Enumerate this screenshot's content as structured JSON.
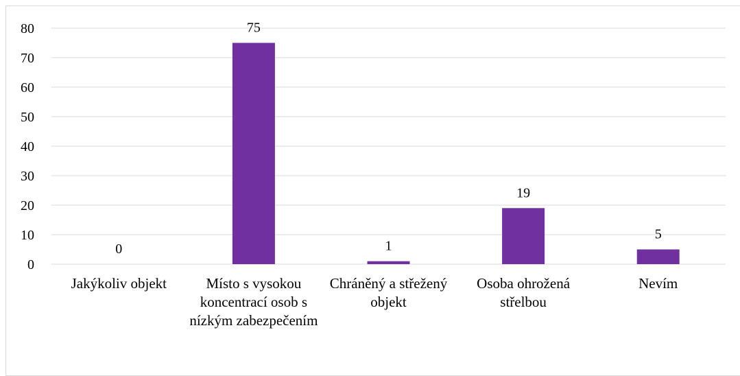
{
  "chart_data": {
    "type": "bar",
    "categories": [
      "Jakýkoliv objekt",
      "Místo s vysokou koncentrací osob s nízkým zabezpečením",
      "Chráněný a střežený objekt",
      "Osoba ohrožená střelbou",
      "Nevím"
    ],
    "values": [
      0,
      75,
      1,
      19,
      5
    ],
    "color": "#7030a0",
    "ylim": [
      0,
      80
    ],
    "yticks": [
      0,
      10,
      20,
      30,
      40,
      50,
      60,
      70,
      80
    ],
    "grid": true,
    "data_labels": true
  }
}
